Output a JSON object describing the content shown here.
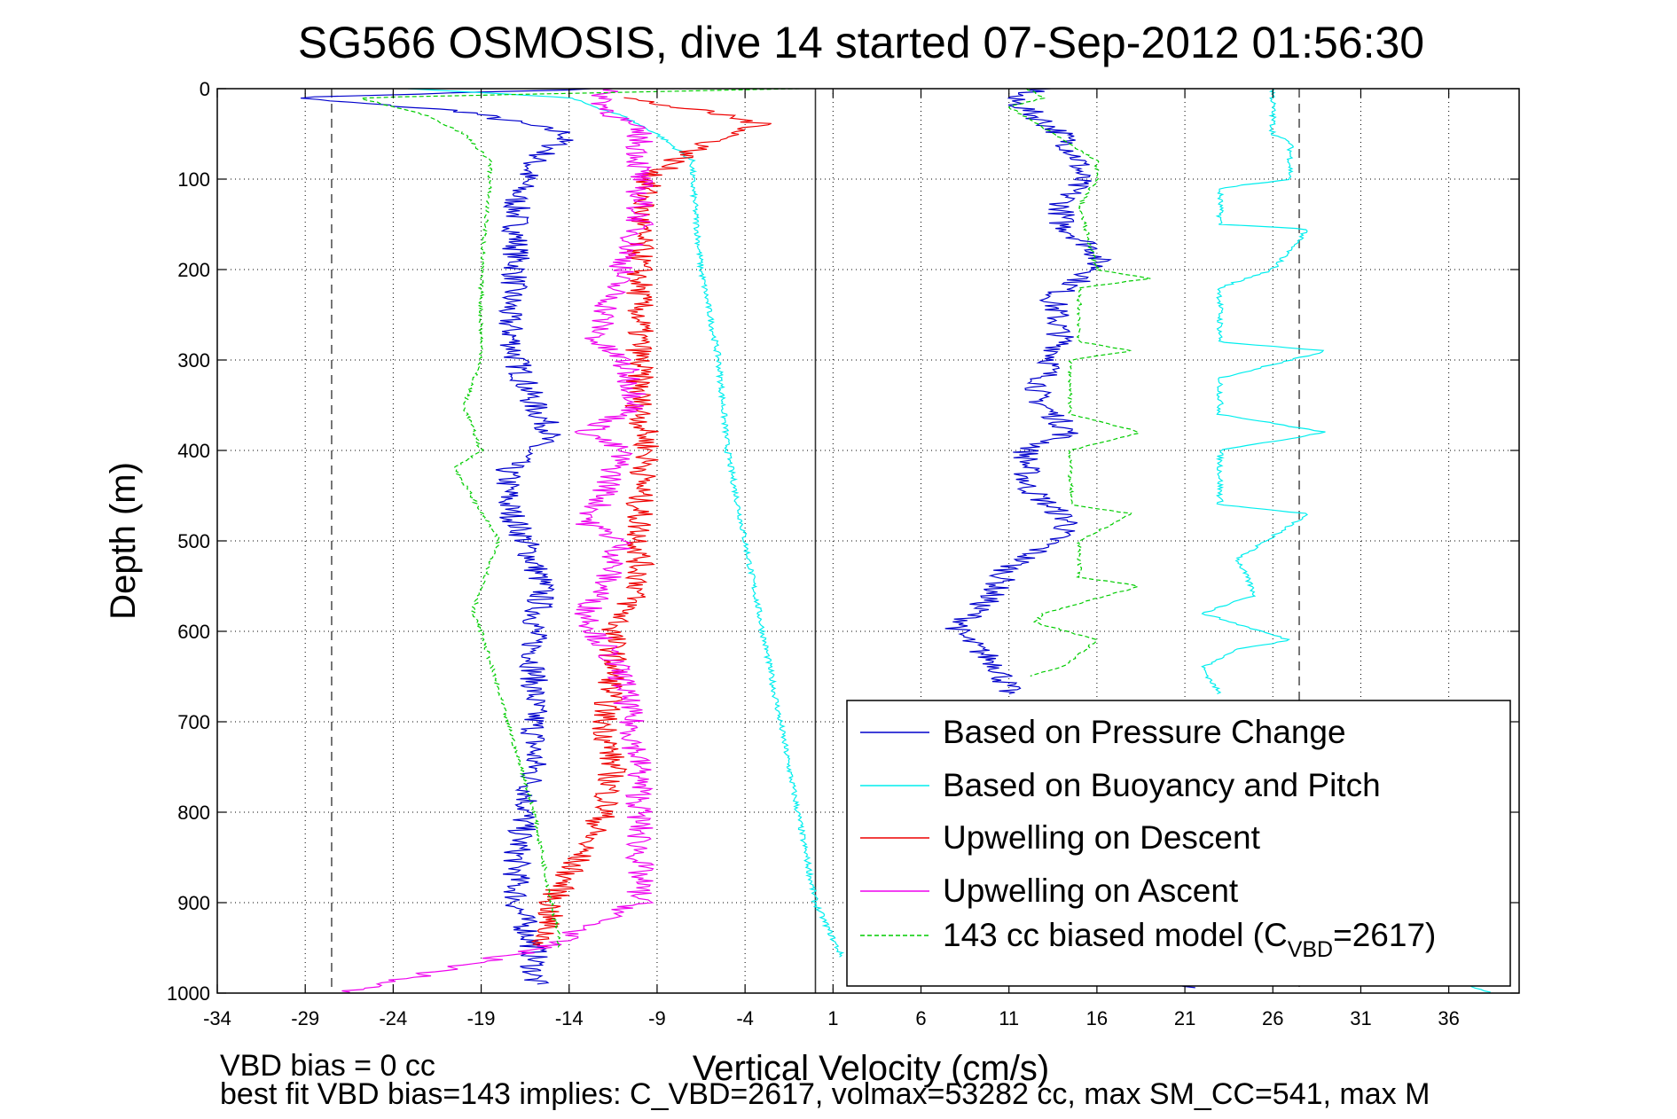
{
  "chart_data": {
    "type": "line",
    "title": "SG566 OSMOSIS, dive 14 started 07-Sep-2012 01:56:30",
    "xlabel": "Vertical Velocity (cm/s)",
    "ylabel": "Depth (m)",
    "xlim": [
      -34,
      40
    ],
    "ylim": [
      0,
      1000
    ],
    "y_reversed": true,
    "grid": true,
    "legend_position": "bottom-right",
    "x_ticks": [
      "-34",
      "-29",
      "-24",
      "-19",
      "-14",
      "-9",
      "-4",
      "1",
      "6",
      "11",
      "16",
      "21",
      "26",
      "31",
      "36"
    ],
    "y_ticks": [
      "0",
      "100",
      "200",
      "300",
      "400",
      "500",
      "600",
      "700",
      "800",
      "900",
      "1000"
    ],
    "reference_lines": [
      {
        "x": -27.5,
        "style": "dashed",
        "color": "#555555"
      },
      {
        "x": 0,
        "style": "solid",
        "color": "#333333"
      },
      {
        "x": 27.5,
        "style": "dashed",
        "color": "#555555"
      }
    ],
    "series": [
      {
        "name": "Based on Pressure Change",
        "color": "#0000cc",
        "style": "solid",
        "segments": [
          {
            "depth": [
              0,
              10,
              25,
              50,
              80,
              120,
              160,
              200,
              250,
              300,
              350,
              380,
              420,
              460,
              500,
              550,
              600,
              650,
              700,
              750,
              800,
              850,
              900,
              950,
              990
            ],
            "x": [
              -12,
              -30,
              -20,
              -14,
              -16,
              -17,
              -17,
              -17,
              -17.5,
              -17,
              -16,
              -15,
              -17.5,
              -17.5,
              -16.5,
              -15.5,
              -16,
              -16,
              -16,
              -16,
              -16.5,
              -17,
              -17,
              -16,
              -16
            ]
          },
          {
            "depth": [
              0,
              10,
              50,
              80,
              100,
              130,
              150,
              180,
              200,
              230,
              280,
              300,
              340,
              380,
              400,
              440,
              480,
              500,
              530,
              560,
              600,
              640,
              670
            ],
            "x": [
              13,
              11,
              14,
              15,
              15,
              14,
              14,
              16,
              16,
              13.5,
              14,
              13.5,
              12.5,
              14.5,
              12,
              12,
              14.5,
              13.5,
              11,
              10,
              8,
              10.5,
              11
            ]
          },
          {
            "depth": [
              985,
              995
            ],
            "x": [
              18,
              22
            ]
          }
        ]
      },
      {
        "name": "Based on Buoyancy and Pitch",
        "color": "#00eeee",
        "style": "solid",
        "segments": [
          {
            "depth": [
              0,
              10,
              30,
              50,
              80,
              100,
              200,
              300,
              400,
              500,
              600,
              700,
              800,
              900,
              960
            ],
            "x": [
              -23,
              -14,
              -11,
              -9,
              -7,
              -7,
              -6.5,
              -5.5,
              -5,
              -4,
              -3,
              -2,
              -1,
              0,
              1.5
            ]
          },
          {
            "depth": [
              0,
              50,
              60,
              100,
              110,
              150,
              155,
              200,
              220,
              280,
              290,
              320,
              360,
              380,
              400,
              460,
              470,
              520,
              560,
              580,
              610,
              620,
              640,
              670
            ],
            "x": [
              26,
              26,
              27,
              27,
              23,
              23,
              28,
              26,
              23,
              23,
              29,
              23,
              23,
              29,
              23,
              23,
              28,
              24,
              25,
              22,
              27,
              24,
              22,
              23
            ]
          },
          {
            "depth": [
              990,
              1000
            ],
            "x": [
              37,
              38.5
            ]
          }
        ]
      },
      {
        "name": "Upwelling on Descent",
        "color": "#ee0000",
        "style": "solid",
        "segments": [
          {
            "depth": [
              10,
              30,
              40,
              60,
              80,
              100,
              150,
              200,
              250,
              300,
              350,
              400,
              450,
              500,
              550,
              600,
              650,
              700,
              750,
              800,
              850,
              900,
              950
            ],
            "x": [
              -11,
              -5,
              -3,
              -6,
              -8,
              -9.5,
              -10,
              -10,
              -10,
              -10,
              -10,
              -9.5,
              -10,
              -10,
              -10,
              -11.5,
              -11.5,
              -12,
              -11.5,
              -12,
              -13.5,
              -15,
              -15.5
            ]
          }
        ]
      },
      {
        "name": "Upwelling on Ascent",
        "color": "#ee00ee",
        "style": "solid",
        "segments": [
          {
            "depth": [
              0,
              20,
              50,
              100,
              150,
              200,
              250,
              280,
              300,
              350,
              380,
              400,
              450,
              480,
              500,
              550,
              580,
              600,
              650,
              700,
              750,
              800,
              850,
              900,
              950,
              1000
            ],
            "x": [
              -12,
              -12,
              -10,
              -10,
              -10,
              -11,
              -12,
              -12.5,
              -11,
              -10,
              -13,
              -11,
              -12,
              -13,
              -11,
              -12,
              -13,
              -12.5,
              -11,
              -10.5,
              -10,
              -10,
              -10,
              -10,
              -15.5,
              -27
            ]
          }
        ]
      },
      {
        "name": "143 cc biased model (C_VBD=2617)",
        "legend_label_parts": [
          "143 cc biased model (C",
          "VBD",
          "=2617)"
        ],
        "color": "#00cc00",
        "style": "dashed",
        "segments": [
          {
            "depth": [
              0,
              10,
              30,
              50,
              70,
              80,
              100,
              200,
              300,
              350,
              400,
              420,
              500,
              580,
              600,
              700,
              800,
              900,
              950
            ],
            "x": [
              -1,
              -26,
              -22,
              -20,
              -19,
              -18.5,
              -18.5,
              -19,
              -19,
              -20,
              -19,
              -20.5,
              -18,
              -19.5,
              -19,
              -17.5,
              -16,
              -15,
              -14.5
            ]
          },
          {
            "depth": [
              0,
              10,
              20,
              80,
              100,
              130,
              200,
              210,
              220,
              280,
              290,
              300,
              360,
              380,
              400,
              460,
              470,
              500,
              540,
              550,
              580,
              590,
              610,
              640,
              650
            ],
            "x": [
              12,
              13,
              11,
              16,
              16,
              15,
              16,
              19,
              15,
              15,
              18,
              14.5,
              14.5,
              18.5,
              14.5,
              14.5,
              18,
              15,
              15,
              18.5,
              13,
              12.5,
              16,
              14,
              12
            ]
          }
        ]
      }
    ]
  },
  "footer": {
    "line1": "VBD bias = 0 cc",
    "line2": "best fit VBD bias=143 implies: C_VBD=2617, volmax=53282 cc, max SM_CC=541, max M"
  }
}
